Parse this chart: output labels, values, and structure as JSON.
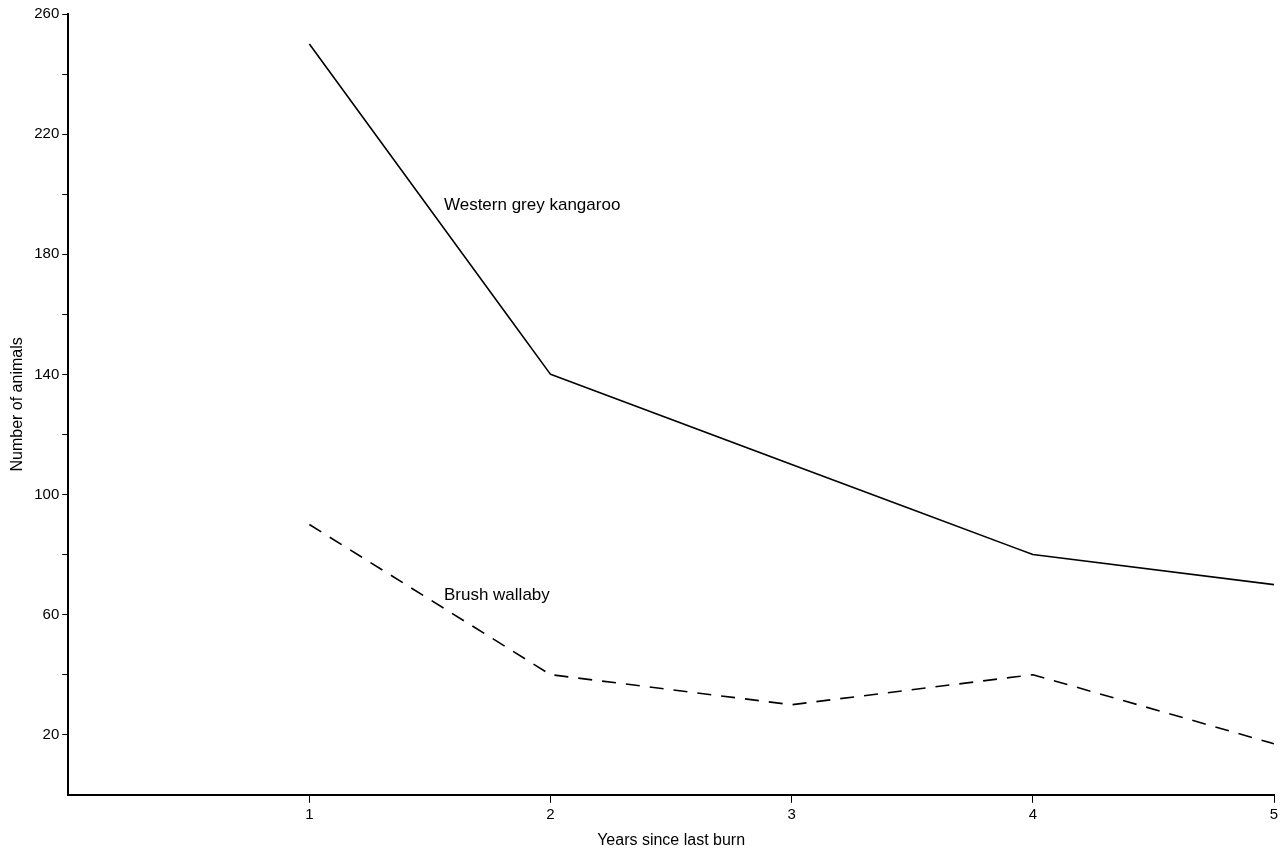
{
  "chart_data": {
    "type": "line",
    "xlabel": "Years since last burn",
    "ylabel": "Number of animals",
    "x": [
      1,
      2,
      3,
      4,
      5
    ],
    "series": [
      {
        "name": "Western grey kangaroo",
        "color": "#000000",
        "line_style": "solid",
        "values": [
          250,
          140,
          110,
          80,
          70
        ]
      },
      {
        "name": "Brush wallaby",
        "color": "#000000",
        "line_style": "dashed",
        "values": [
          90,
          40,
          30,
          40,
          17
        ]
      }
    ],
    "xlim": [
      0,
      5
    ],
    "xticks": [
      1,
      2,
      3,
      4,
      5
    ],
    "ylim": [
      0,
      260
    ],
    "yticks": [
      20,
      {
        "value": 40,
        "label": null
      },
      60,
      {
        "value": 80,
        "label": null
      },
      100,
      {
        "value": 120,
        "label": null
      },
      140,
      {
        "value": 160,
        "label": null
      },
      180,
      {
        "value": 200,
        "label": null
      },
      220,
      {
        "value": 240,
        "label": null
      },
      260
    ],
    "grid": false,
    "legend": false,
    "marker": "none"
  }
}
